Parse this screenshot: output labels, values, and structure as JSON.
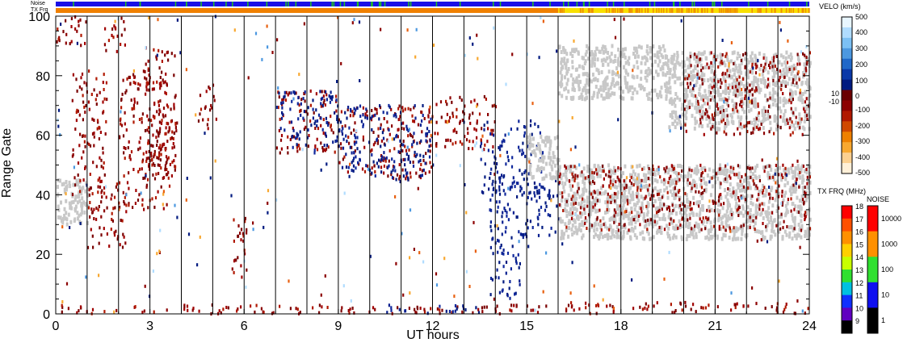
{
  "chart_data": {
    "type": "heatmap",
    "xlabel": "UT hours",
    "ylabel": "Range Gate",
    "xlim": [
      0,
      24
    ],
    "ylim": [
      0,
      100
    ],
    "x_ticks": [
      "0",
      "3",
      "6",
      "9",
      "12",
      "15",
      "18",
      "21",
      "24"
    ],
    "y_ticks": [
      "0",
      "20",
      "40",
      "60",
      "80",
      "100"
    ],
    "hour_gridlines": true,
    "top_strips": [
      {
        "label": "Noise",
        "color": "#1a10e6",
        "accent": "#20c020"
      },
      {
        "label": "TX Frq",
        "segments": [
          {
            "from_hour": 0,
            "to_hour": 16,
            "color": "#f08000"
          },
          {
            "from_hour": 16,
            "to_hour": 24,
            "color": "#f8e000"
          }
        ]
      }
    ],
    "ground_scatter_color": "#c8c8c8",
    "velocity_scale": {
      "title": "VELO (km/s)",
      "labels": [
        "500",
        "400",
        "300",
        "200",
        "100",
        "10",
        "0",
        "-10",
        "-100",
        "-200",
        "-300",
        "-400",
        "-500"
      ],
      "colors": [
        "#e8f6ff",
        "#b0dcff",
        "#7cc0f4",
        "#4c98e0",
        "#2068c8",
        "#0a38a8",
        "#001a80",
        "#6a0000",
        "#8c0000",
        "#b01800",
        "#d04800",
        "#ee8000",
        "#f8a830",
        "#fcd090",
        "#fff0d8"
      ]
    },
    "txfreq_scale": {
      "title": "TX FRQ (MHz)",
      "labels": [
        "18",
        "17",
        "16",
        "15",
        "14",
        "13",
        "12",
        "11",
        "10",
        "9"
      ],
      "colors": [
        "#ff0000",
        "#ff5000",
        "#ff9000",
        "#ffd000",
        "#c8ff00",
        "#30e030",
        "#00c0e0",
        "#1030ff",
        "#6000c0",
        "#000000"
      ]
    },
    "noise_scale": {
      "title": "NOISE",
      "labels": [
        "10000",
        "1000",
        "100",
        "10",
        "1"
      ],
      "colors": [
        "#ff0000",
        "#ff9000",
        "#30e030",
        "#1010f0",
        "#000000"
      ]
    },
    "echo_regions": [
      {
        "t0": 0.0,
        "t1": 1.0,
        "g0": 30,
        "g1": 45,
        "kind": "ground"
      },
      {
        "t0": 0.0,
        "t1": 1.0,
        "g0": 90,
        "g1": 100,
        "kind": "negative"
      },
      {
        "t0": 0.5,
        "t1": 1.6,
        "g0": 40,
        "g1": 82,
        "kind": "negative"
      },
      {
        "t0": 1.0,
        "t1": 2.3,
        "g0": 22,
        "g1": 45,
        "kind": "negative"
      },
      {
        "t0": 1.5,
        "t1": 2.2,
        "g0": 88,
        "g1": 100,
        "kind": "negative"
      },
      {
        "t0": 2.0,
        "t1": 3.6,
        "g0": 35,
        "g1": 82,
        "kind": "negative"
      },
      {
        "t0": 2.8,
        "t1": 3.8,
        "g0": 45,
        "g1": 90,
        "kind": "negative"
      },
      {
        "t0": 3.0,
        "t1": 3.9,
        "g0": 48,
        "g1": 65,
        "kind": "negative"
      },
      {
        "t0": 4.5,
        "t1": 5.1,
        "g0": 62,
        "g1": 77,
        "kind": "negative"
      },
      {
        "t0": 5.6,
        "t1": 6.1,
        "g0": 12,
        "g1": 35,
        "kind": "negative"
      },
      {
        "t0": 7.0,
        "t1": 9.0,
        "g0": 54,
        "g1": 75,
        "kind": "negative"
      },
      {
        "t0": 7.0,
        "t1": 9.0,
        "g0": 54,
        "g1": 75,
        "kind": "positive"
      },
      {
        "t0": 9.0,
        "t1": 12.0,
        "g0": 45,
        "g1": 70,
        "kind": "negative"
      },
      {
        "t0": 9.0,
        "t1": 12.0,
        "g0": 45,
        "g1": 70,
        "kind": "positive"
      },
      {
        "t0": 12.0,
        "t1": 14.0,
        "g0": 55,
        "g1": 73,
        "kind": "negative"
      },
      {
        "t0": 13.5,
        "t1": 15.5,
        "g0": 40,
        "g1": 65,
        "kind": "positive"
      },
      {
        "t0": 13.8,
        "t1": 16.0,
        "g0": 25,
        "g1": 45,
        "kind": "positive"
      },
      {
        "t0": 13.8,
        "t1": 14.8,
        "g0": 5,
        "g1": 25,
        "kind": "positive"
      },
      {
        "t0": 15.0,
        "t1": 16.0,
        "g0": 45,
        "g1": 60,
        "kind": "ground"
      },
      {
        "t0": 16.0,
        "t1": 24.0,
        "g0": 25,
        "g1": 50,
        "kind": "ground"
      },
      {
        "t0": 16.0,
        "t1": 24.0,
        "g0": 28,
        "g1": 50,
        "kind": "negative"
      },
      {
        "t0": 16.0,
        "t1": 19.5,
        "g0": 72,
        "g1": 90,
        "kind": "ground"
      },
      {
        "t0": 19.5,
        "t1": 24.0,
        "g0": 62,
        "g1": 88,
        "kind": "ground"
      },
      {
        "t0": 20.0,
        "t1": 24.0,
        "g0": 60,
        "g1": 88,
        "kind": "negative"
      },
      {
        "t0": 0.0,
        "t1": 16.0,
        "g0": 0,
        "g1": 3,
        "kind": "negative"
      },
      {
        "t0": 10.5,
        "t1": 13.5,
        "g0": 0,
        "g1": 3,
        "kind": "positive"
      },
      {
        "t0": 16.0,
        "t1": 24.0,
        "g0": 0,
        "g1": 4,
        "kind": "negative"
      },
      {
        "t0": 0.0,
        "t1": 24.0,
        "g0": 0,
        "g1": 100,
        "kind": "sparse"
      }
    ]
  }
}
